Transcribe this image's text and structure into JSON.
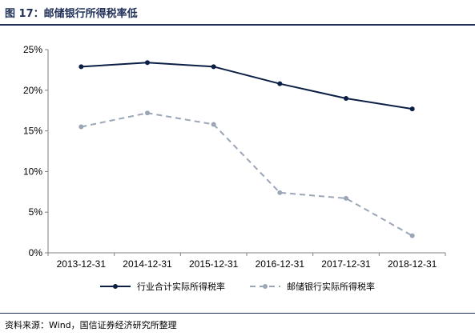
{
  "header": {
    "title": "图 17：邮储银行所得税率低"
  },
  "footer": {
    "source": "资料来源：Wind，国信证券经济研究所整理"
  },
  "chart_data": {
    "type": "line",
    "categories": [
      "2013-12-31",
      "2014-12-31",
      "2015-12-31",
      "2016-12-31",
      "2017-12-31",
      "2018-12-31"
    ],
    "y_ticks": [
      "0%",
      "5%",
      "10%",
      "15%",
      "20%",
      "25%"
    ],
    "ylim": [
      0,
      25
    ],
    "grid": false,
    "legend_position": "bottom",
    "series": [
      {
        "name": "行业合计实际所得税率",
        "values": [
          22.9,
          23.4,
          22.9,
          20.8,
          19.0,
          17.7
        ],
        "color": "#0b1f45",
        "dash": "solid"
      },
      {
        "name": "邮储银行实际所得税率",
        "values": [
          15.5,
          17.2,
          15.8,
          7.4,
          6.7,
          2.1
        ],
        "color": "#9aa6b6",
        "dash": "dashed"
      }
    ]
  }
}
